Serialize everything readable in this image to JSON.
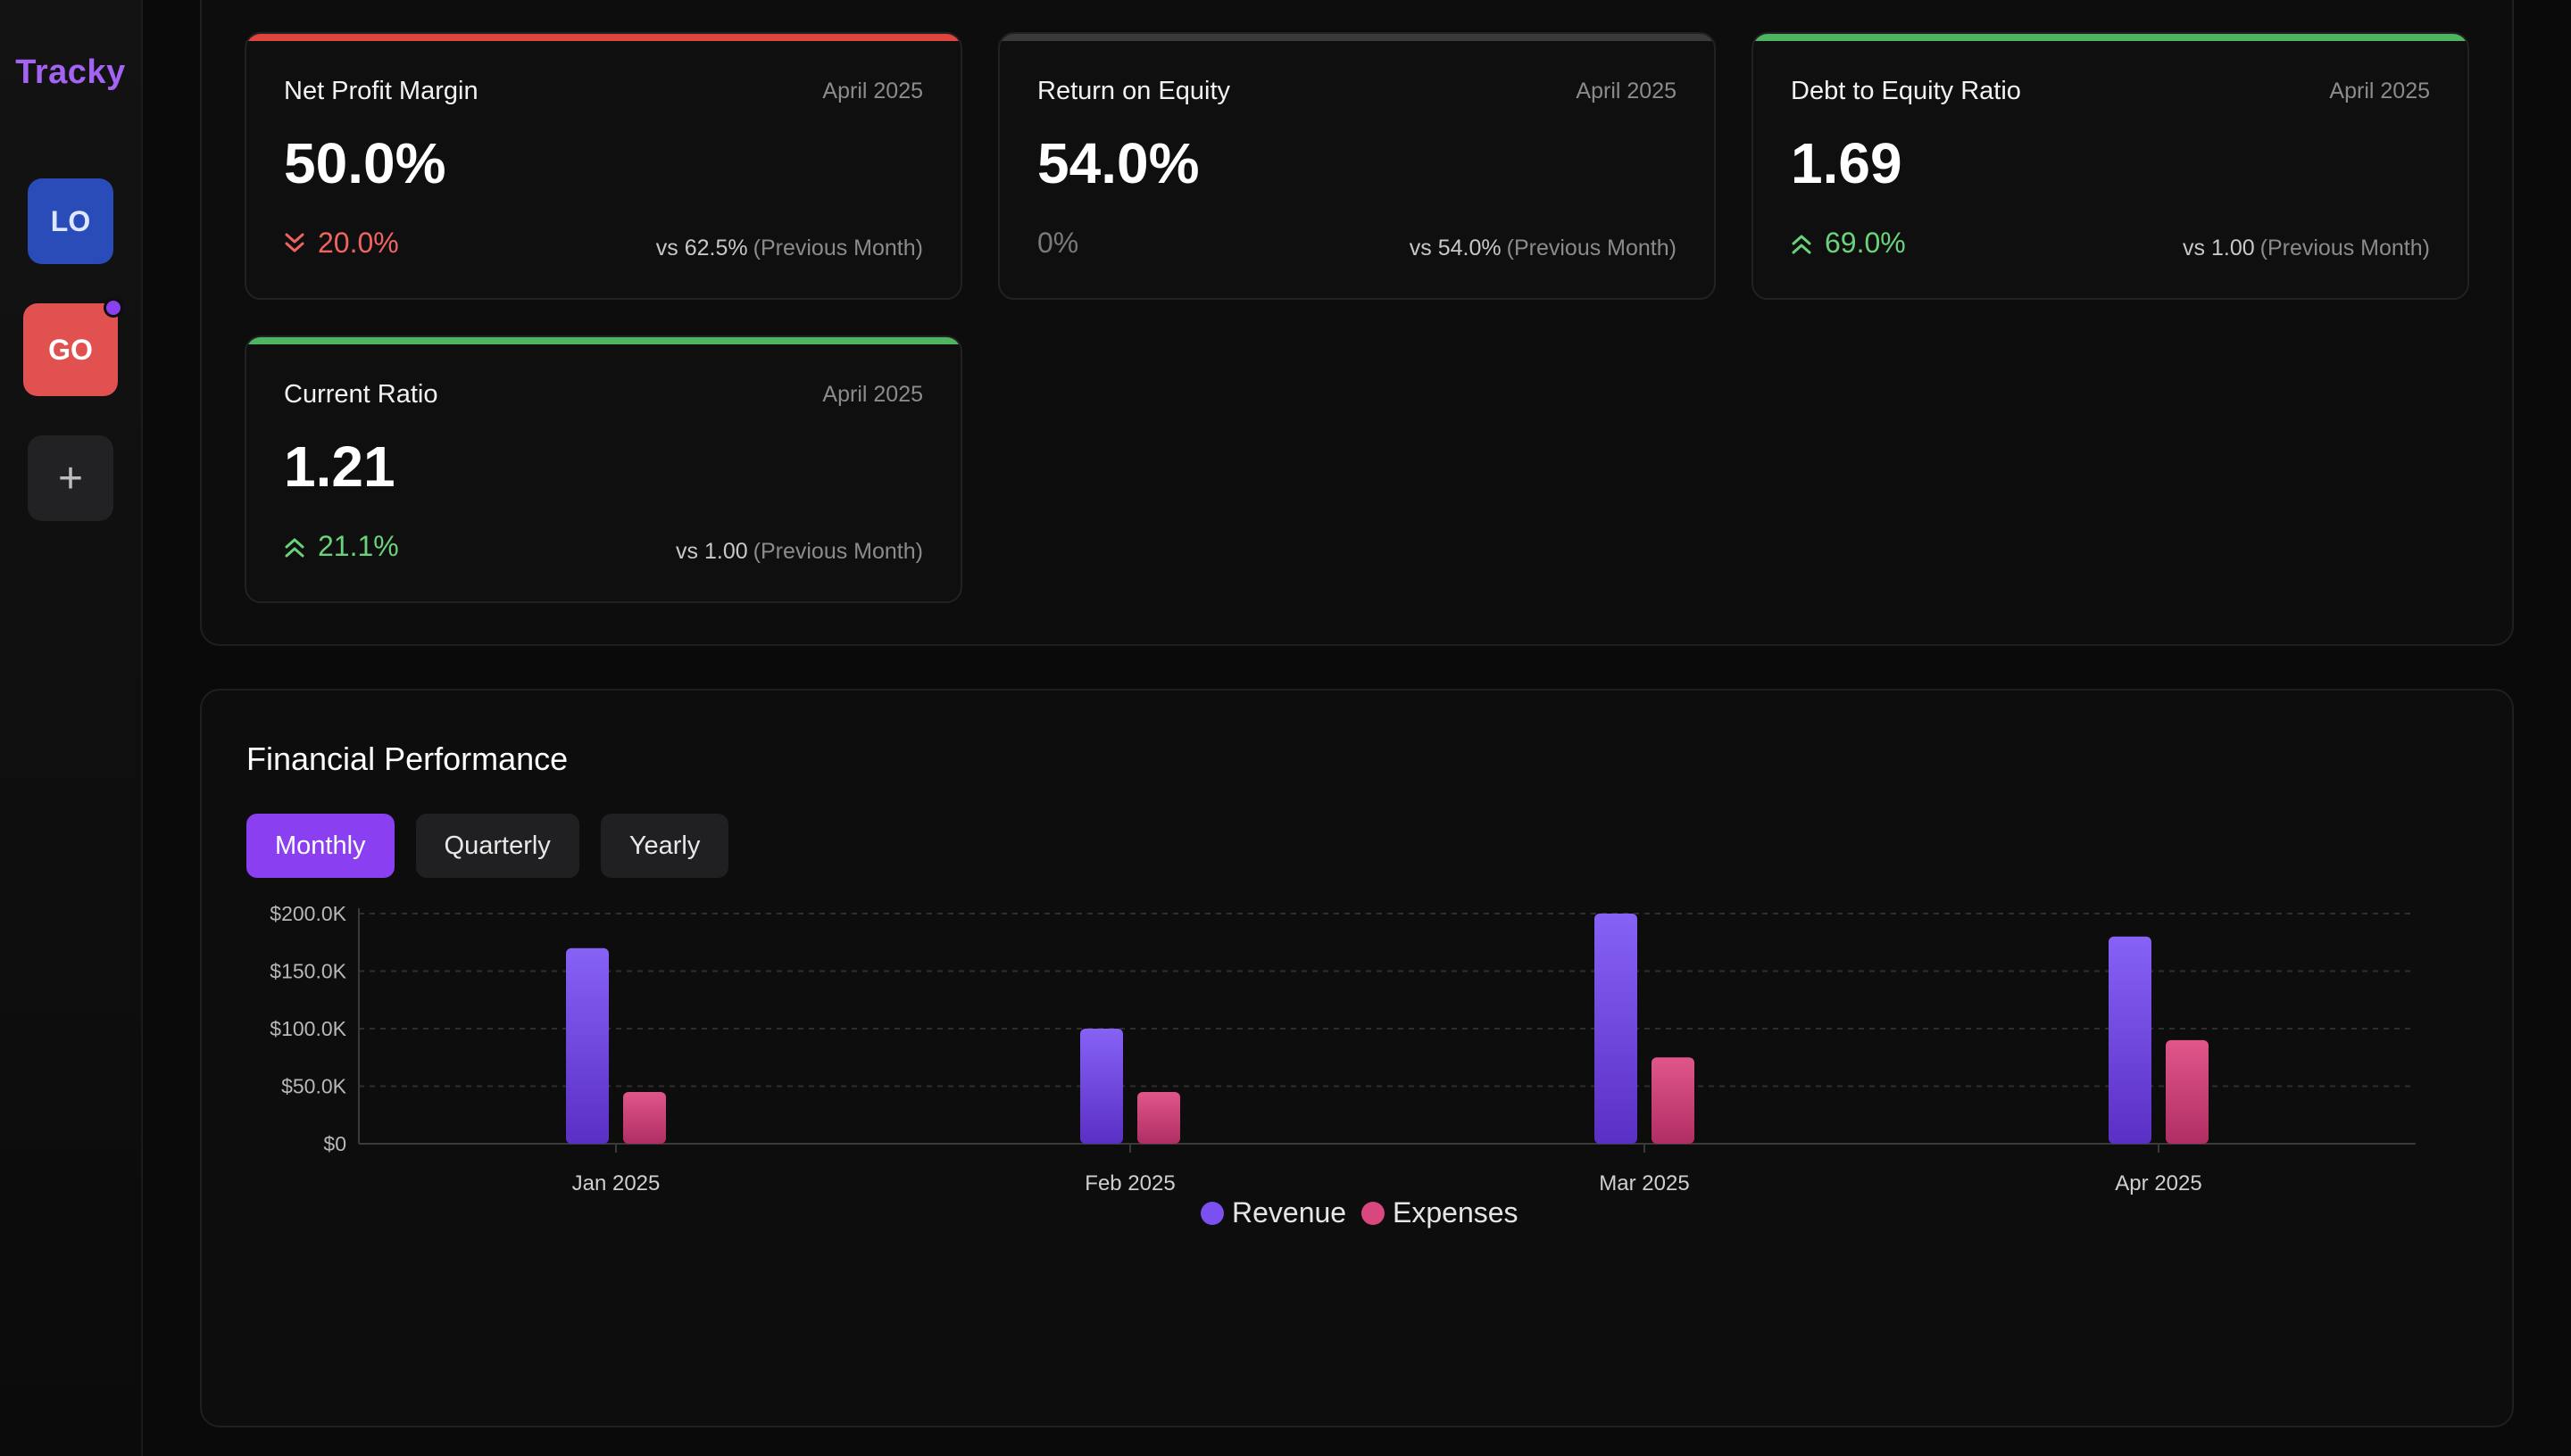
{
  "app": {
    "brand": "Tracky"
  },
  "sidebar": {
    "workspaces": [
      {
        "label": "LO",
        "color": "#2a4cb8"
      },
      {
        "label": "GO",
        "color": "#e0514f",
        "has_notification": true
      }
    ],
    "add_label": "+"
  },
  "metrics": [
    {
      "title": "Net Profit Margin",
      "date": "April 2025",
      "value": "50.0%",
      "change": "20.0%",
      "direction": "down",
      "vs": "vs 62.5%",
      "vs_note": "(Previous Month)",
      "accent": "#e0443e"
    },
    {
      "title": "Return on Equity",
      "date": "April 2025",
      "value": "54.0%",
      "change": "0%",
      "direction": "flat",
      "vs": "vs 54.0%",
      "vs_note": "(Previous Month)",
      "accent": "#3a3a3c"
    },
    {
      "title": "Debt to Equity Ratio",
      "date": "April 2025",
      "value": "1.69",
      "change": "69.0%",
      "direction": "up",
      "vs": "vs 1.00",
      "vs_note": "(Previous Month)",
      "accent": "#4fb45f"
    },
    {
      "title": "Current Ratio",
      "date": "April 2025",
      "value": "1.21",
      "change": "21.1%",
      "direction": "up",
      "vs": "vs 1.00",
      "vs_note": "(Previous Month)",
      "accent": "#4fb45f"
    }
  ],
  "performance": {
    "title": "Financial Performance",
    "tabs": [
      {
        "label": "Monthly",
        "active": true
      },
      {
        "label": "Quarterly",
        "active": false
      },
      {
        "label": "Yearly",
        "active": false
      }
    ]
  },
  "chart_data": {
    "type": "bar",
    "categories": [
      "Jan 2025",
      "Feb 2025",
      "Mar 2025",
      "Apr 2025"
    ],
    "series": [
      {
        "name": "Revenue",
        "values": [
          170000,
          100000,
          200000,
          180000
        ],
        "color": "#7b4ff0"
      },
      {
        "name": "Expenses",
        "values": [
          45000,
          45000,
          75000,
          90000
        ],
        "color": "#d9477f"
      }
    ],
    "y_ticks": [
      0,
      50000,
      100000,
      150000,
      200000
    ],
    "y_tick_labels": [
      "$0",
      "$50.0K",
      "$100.0K",
      "$150.0K",
      "$200.0K"
    ],
    "ylim": [
      0,
      200000
    ],
    "grid": true,
    "legend": "bottom-center",
    "xlabel": "",
    "ylabel": ""
  }
}
